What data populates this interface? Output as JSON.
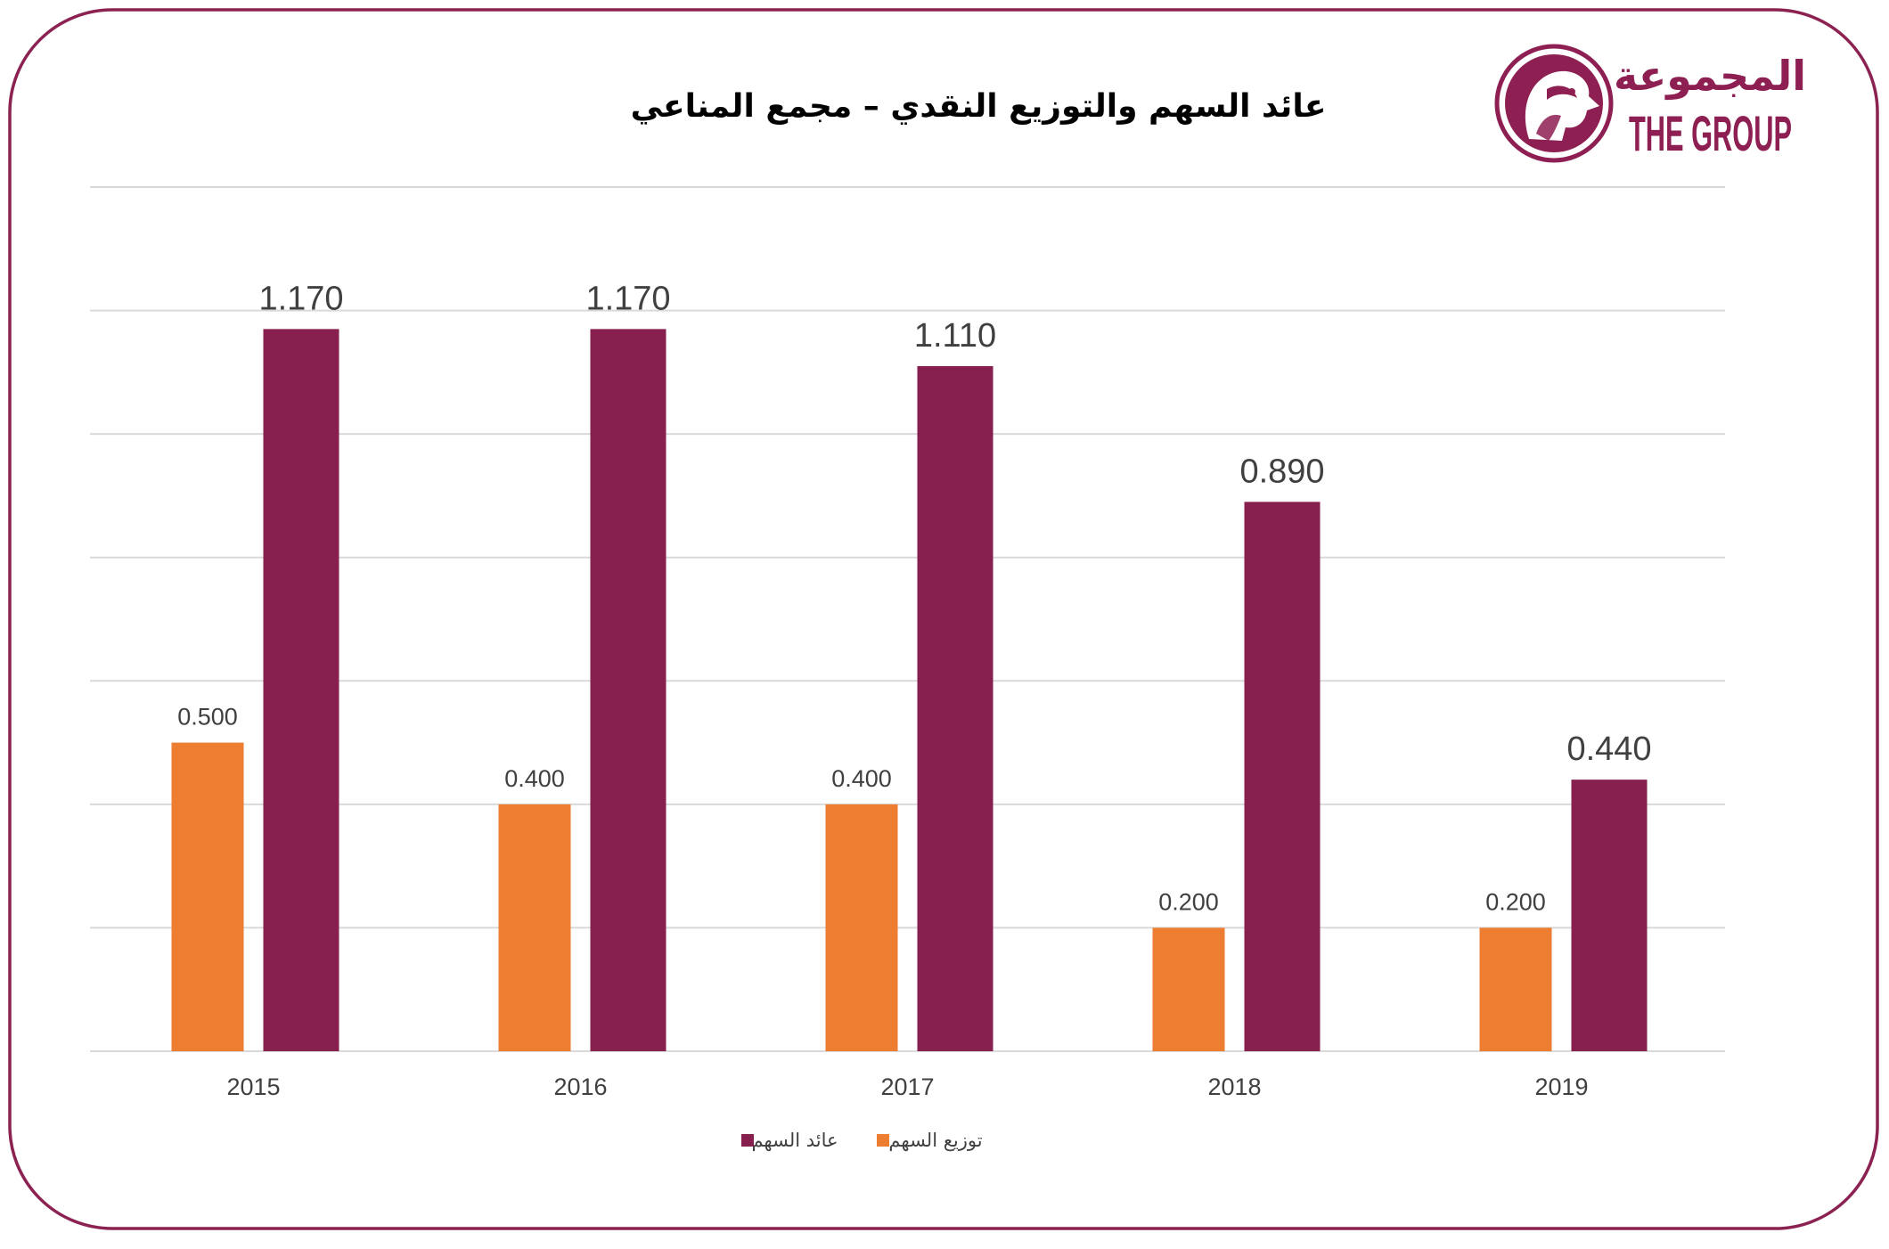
{
  "colors": {
    "frame": "#8B2252",
    "brand": "#8E1F52",
    "gridline": "#D9D9D9",
    "label_text": "#404040",
    "title_text": "#000000"
  },
  "logo": {
    "icon": "falcon-head-emblem-icon",
    "arabic_text": "المجموعة",
    "english_text": "THE GROUP"
  },
  "chart_data": {
    "type": "bar",
    "title": "عائد السهم والتوزيع النقدي – مجمع المناعي",
    "xlabel": "",
    "ylabel": "",
    "categories": [
      "2015",
      "2016",
      "2017",
      "2018",
      "2019"
    ],
    "series": [
      {
        "name": "توزيع السهم",
        "color": "#ED7D31",
        "values": [
          0.5,
          0.4,
          0.4,
          0.2,
          0.2
        ],
        "labels": [
          "0.500",
          "0.400",
          "0.400",
          "0.200",
          "0.200"
        ]
      },
      {
        "name": "عائد السهم",
        "color": "#871F4F",
        "values": [
          1.17,
          1.17,
          1.11,
          0.89,
          0.44
        ],
        "labels": [
          "1.170",
          "1.170",
          "1.110",
          "0.890",
          "0.440"
        ]
      }
    ],
    "ylim": [
      0,
      1.4
    ],
    "grid": true,
    "legend": "bottom-center"
  }
}
